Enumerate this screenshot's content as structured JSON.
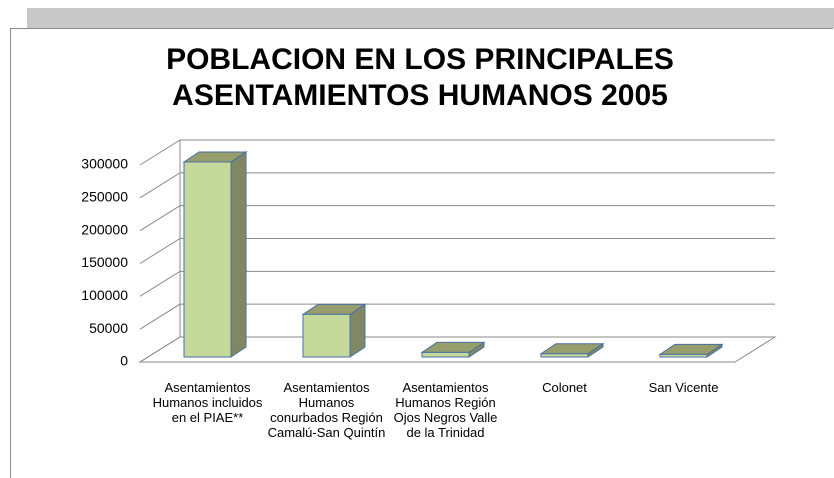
{
  "chart_data": {
    "type": "bar",
    "title": "POBLACION EN LOS PRINCIPALES ASENTAMIENTOS HUMANOS 2005",
    "categories": [
      "Asentamientos Humanos incluidos en el PIAE**",
      "Asentamientos Humanos conurbados Región Camalú-San Quintín",
      "Asentamientos Humanos Región Ojos Negros Valle de la Trinidad",
      "Colonet",
      "San Vicente"
    ],
    "values": [
      297000,
      65000,
      7000,
      5000,
      4000
    ],
    "color": "#c5d99a",
    "ylim": [
      0,
      300000
    ],
    "yticks": [
      0,
      50000,
      100000,
      150000,
      200000,
      250000,
      300000
    ],
    "grid": true
  }
}
